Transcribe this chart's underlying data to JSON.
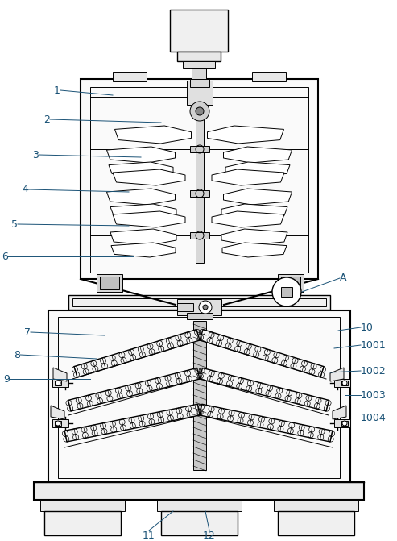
{
  "bg_color": "#ffffff",
  "line_color": "#000000",
  "label_color": "#1a5276",
  "fig_width": 4.93,
  "fig_height": 6.71,
  "dpi": 100
}
